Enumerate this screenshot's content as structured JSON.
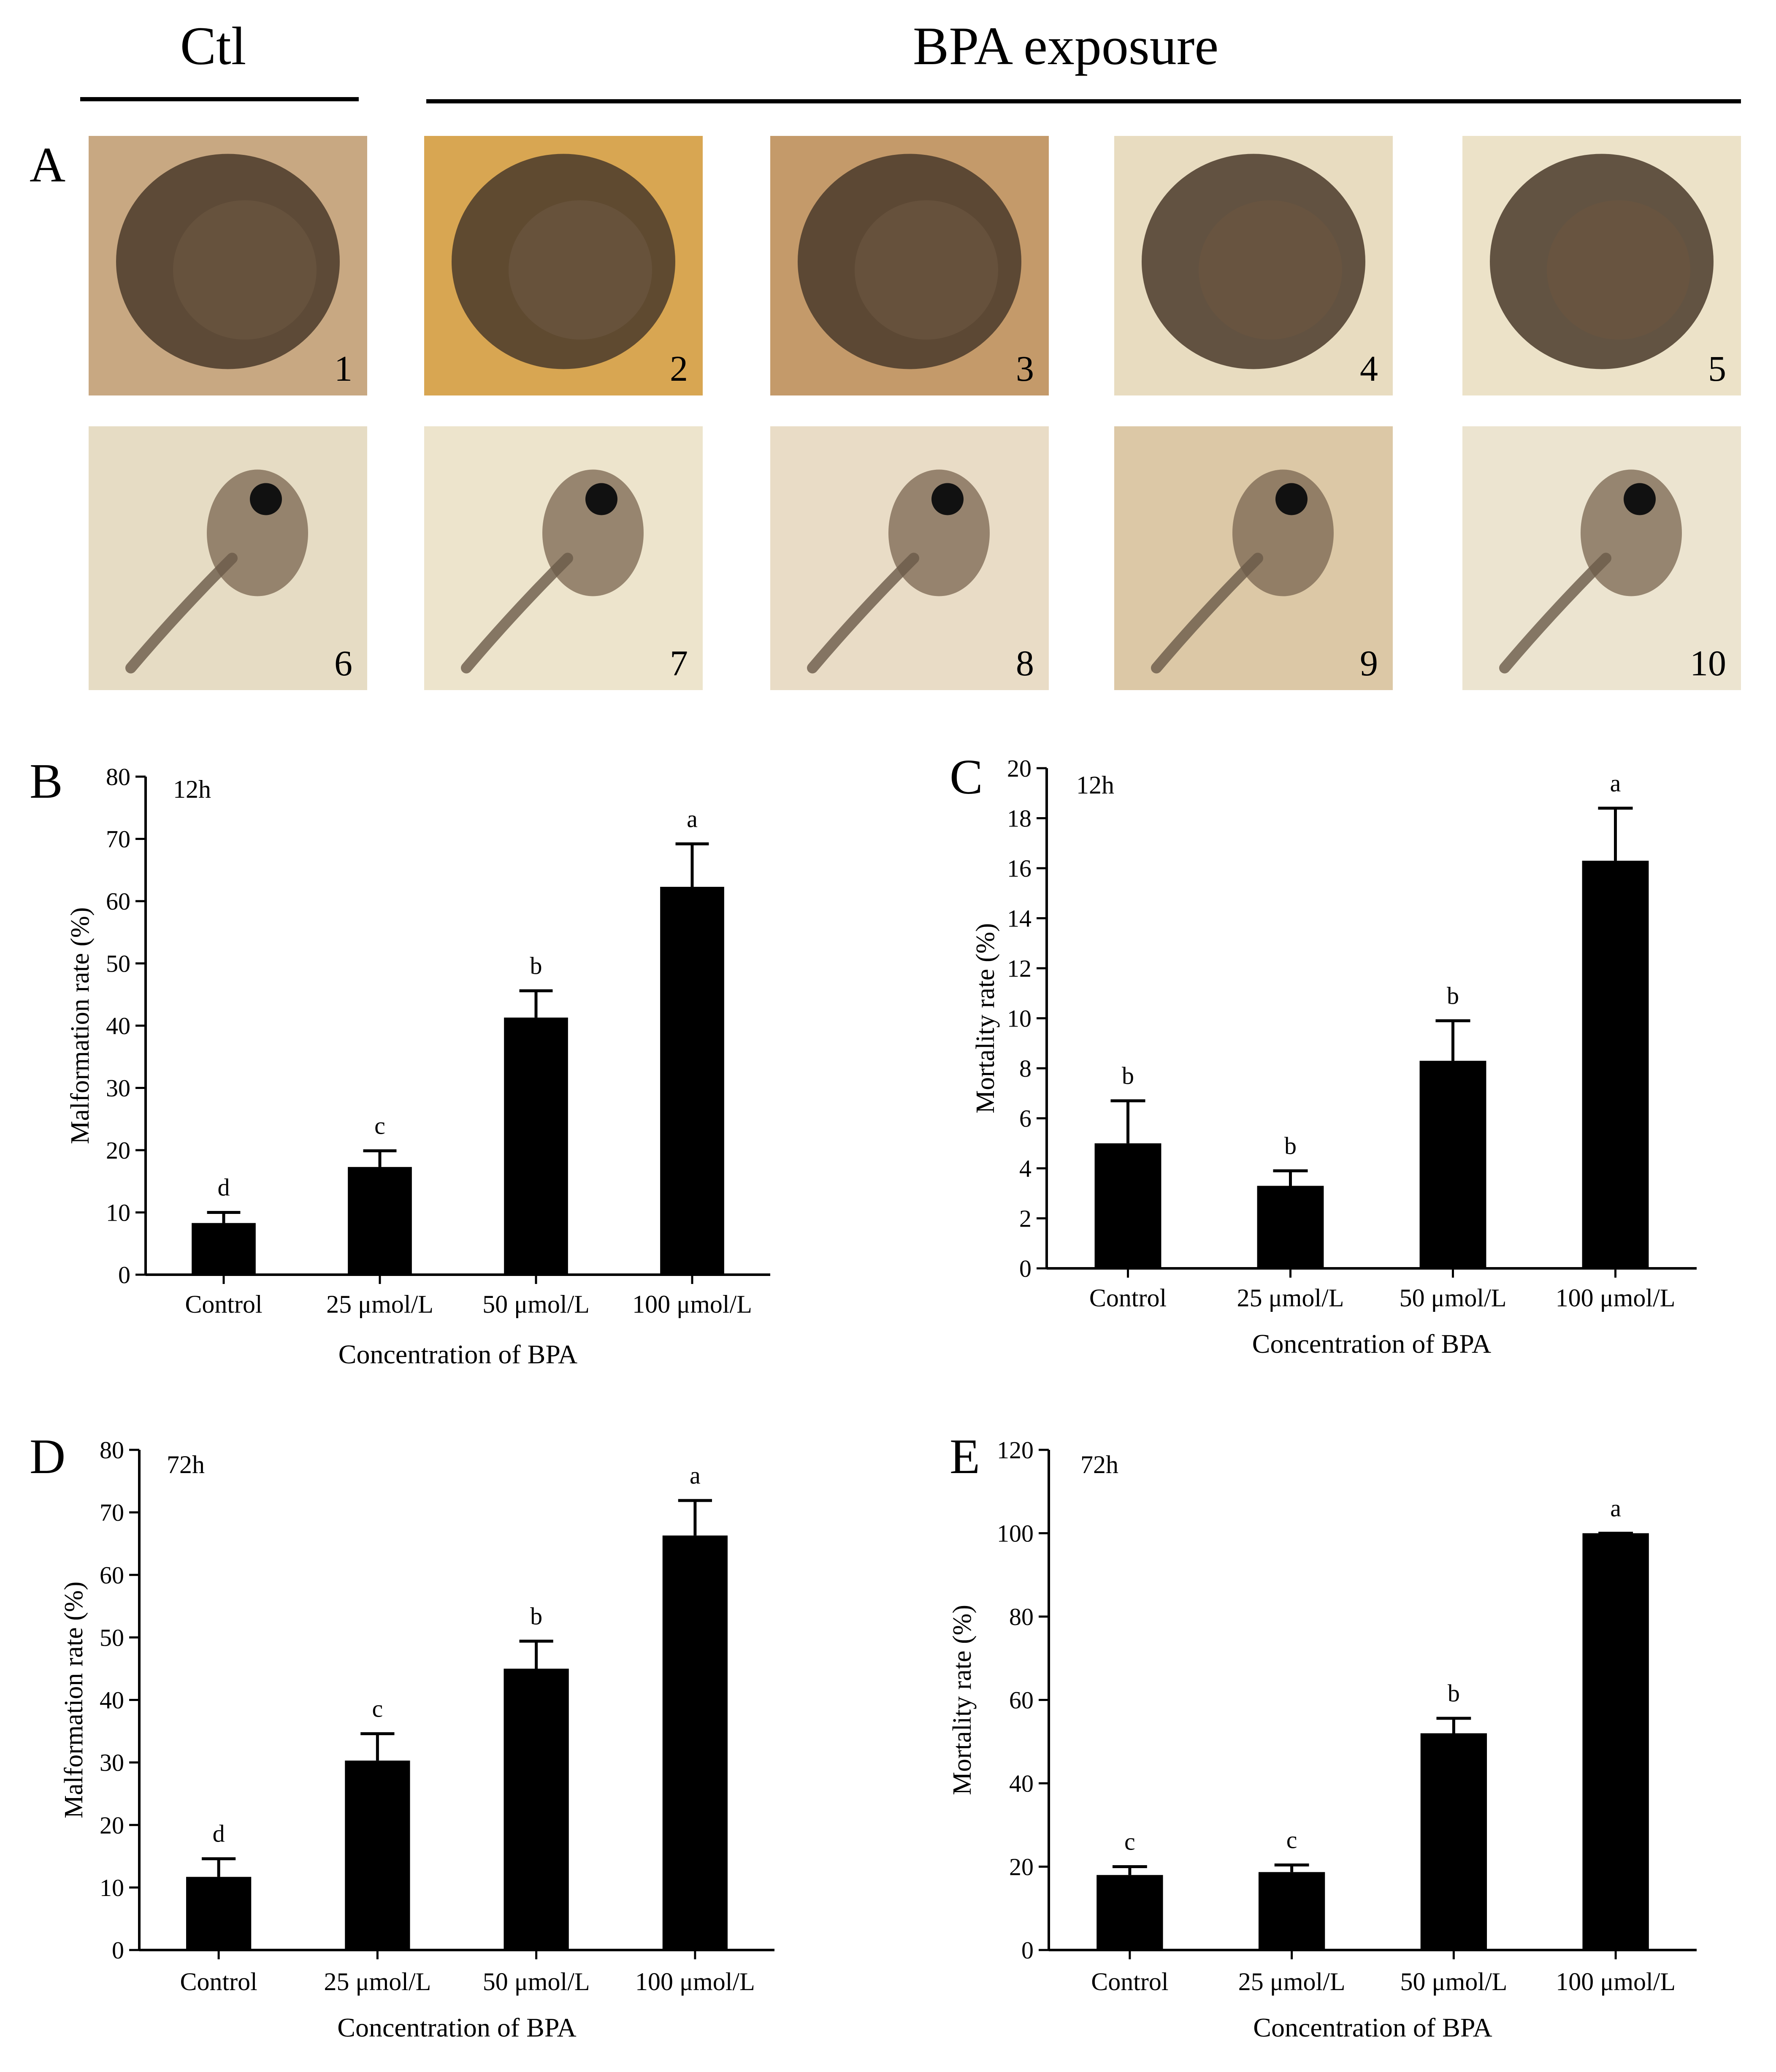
{
  "header": {
    "control_label": "Ctl",
    "treatment_label": "BPA exposure"
  },
  "panel_a": {
    "letter": "A",
    "images": [
      {
        "number": "1",
        "stage": "embryo",
        "tone": "#c8a882"
      },
      {
        "number": "2",
        "stage": "embryo",
        "tone": "#d8a652"
      },
      {
        "number": "3",
        "stage": "embryo",
        "tone": "#c49a6a"
      },
      {
        "number": "4",
        "stage": "embryo",
        "tone": "#e8dcc0"
      },
      {
        "number": "5",
        "stage": "embryo",
        "tone": "#ece2c8"
      },
      {
        "number": "6",
        "stage": "tadpole",
        "tone": "#e6dcc4"
      },
      {
        "number": "7",
        "stage": "tadpole",
        "tone": "#ede4cc"
      },
      {
        "number": "8",
        "stage": "tadpole",
        "tone": "#e9dcc6"
      },
      {
        "number": "9",
        "stage": "tadpole",
        "tone": "#dcc8a6"
      },
      {
        "number": "10",
        "stage": "tadpole",
        "tone": "#ece4d0"
      }
    ]
  },
  "chart_data": [
    {
      "panel": "B",
      "type": "bar",
      "time_label": "12h",
      "categories": [
        "Control",
        "25 μmol/L",
        "50 μmol/L",
        "100 μmol/L"
      ],
      "values": [
        8.3,
        17.3,
        41.3,
        62.3
      ],
      "errors": [
        1.7,
        2.6,
        4.3,
        6.9
      ],
      "significance": [
        "d",
        "c",
        "b",
        "a"
      ],
      "xlabel": "Concentration of BPA",
      "ylabel": "Malformation rate (%)",
      "ylim": [
        0,
        80
      ],
      "yticks": [
        0,
        10,
        20,
        30,
        40,
        50,
        60,
        70,
        80
      ]
    },
    {
      "panel": "C",
      "type": "bar",
      "time_label": "12h",
      "categories": [
        "Control",
        "25 μmol/L",
        "50 μmol/L",
        "100 μmol/L"
      ],
      "values": [
        5.0,
        3.3,
        8.3,
        16.3
      ],
      "errors": [
        1.7,
        0.6,
        1.6,
        2.1
      ],
      "significance": [
        "b",
        "b",
        "b",
        "a"
      ],
      "xlabel": "Concentration of BPA",
      "ylabel": "Mortality rate (%)",
      "ylim": [
        0,
        20
      ],
      "yticks": [
        0,
        2,
        4,
        6,
        8,
        10,
        12,
        14,
        16,
        18,
        20
      ]
    },
    {
      "panel": "D",
      "type": "bar",
      "time_label": "72h",
      "categories": [
        "Control",
        "25 μmol/L",
        "50 μmol/L",
        "100 μmol/L"
      ],
      "values": [
        11.7,
        30.3,
        45.0,
        66.3
      ],
      "errors": [
        2.9,
        4.3,
        4.4,
        5.6
      ],
      "significance": [
        "d",
        "c",
        "b",
        "a"
      ],
      "xlabel": "Concentration of BPA",
      "ylabel": "Malformation rate (%)",
      "ylim": [
        0,
        80
      ],
      "yticks": [
        0,
        10,
        20,
        30,
        40,
        50,
        60,
        70,
        80
      ]
    },
    {
      "panel": "E",
      "type": "bar",
      "time_label": "72h",
      "categories": [
        "Control",
        "25 μmol/L",
        "50 μmol/L",
        "100 μmol/L"
      ],
      "values": [
        18.0,
        18.7,
        52.0,
        100.0
      ],
      "errors": [
        2.0,
        1.7,
        3.6,
        0.0
      ],
      "significance": [
        "c",
        "c",
        "b",
        "a"
      ],
      "xlabel": "Concentration of BPA",
      "ylabel": "Mortality rate (%)",
      "ylim": [
        0,
        120
      ],
      "yticks": [
        0,
        20,
        40,
        60,
        80,
        100,
        120
      ]
    }
  ]
}
